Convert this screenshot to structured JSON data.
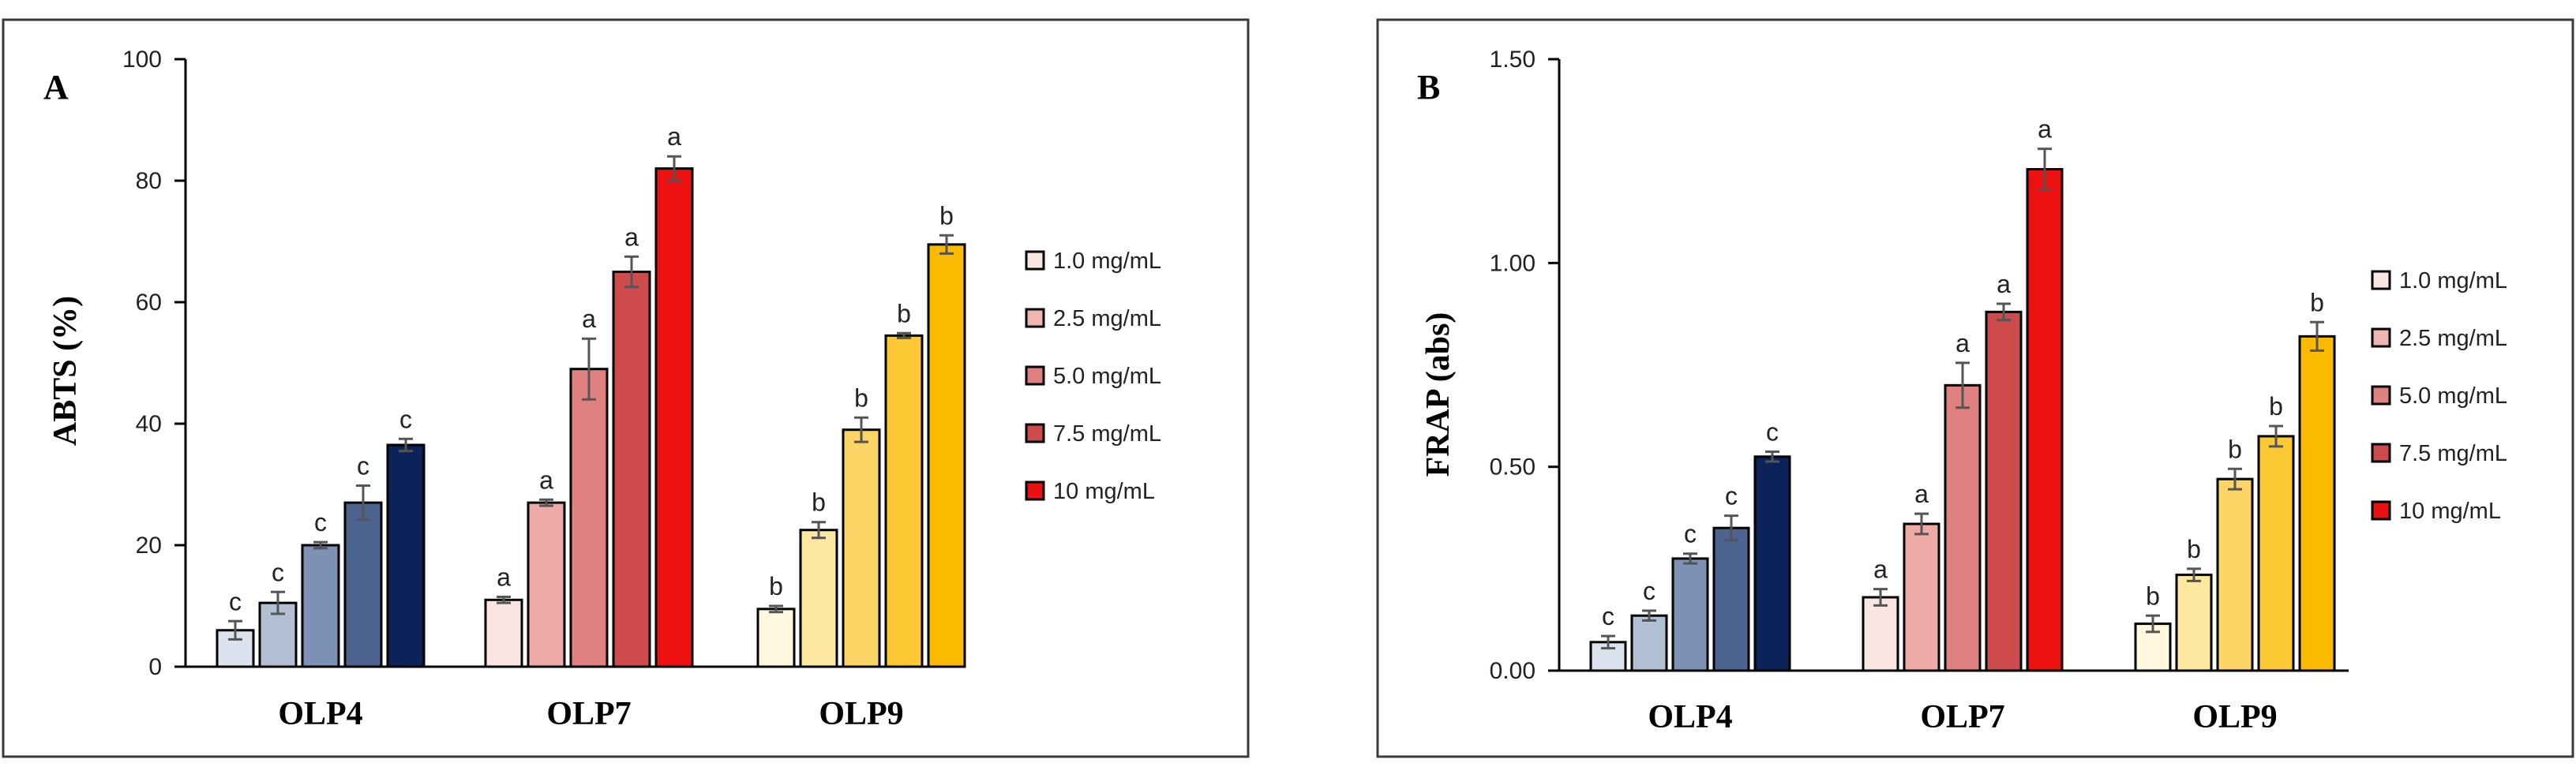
{
  "chart_data": [
    {
      "type": "bar",
      "panel_label": "A",
      "title": "",
      "xlabel": "",
      "ylabel": "ABTS (%)",
      "ylim": [
        0,
        100
      ],
      "yticks": [
        "0",
        "20",
        "40",
        "60",
        "80",
        "100"
      ],
      "categories": [
        "OLP4",
        "OLP7",
        "OLP9"
      ],
      "series": [
        {
          "name": "1.0 mg/mL",
          "values": [
            6,
            11,
            9.5
          ],
          "errors": [
            1.5,
            0.5,
            0.5
          ],
          "labels": [
            "c",
            "a",
            "b"
          ]
        },
        {
          "name": "2.5 mg/mL",
          "values": [
            10.5,
            27,
            22.5
          ],
          "errors": [
            1.8,
            0.5,
            1.3
          ],
          "labels": [
            "c",
            "a",
            "b"
          ]
        },
        {
          "name": "5.0 mg/mL",
          "values": [
            20,
            49,
            39
          ],
          "errors": [
            0.5,
            5,
            2
          ],
          "labels": [
            "c",
            "a",
            "b"
          ]
        },
        {
          "name": "7.5 mg/mL",
          "values": [
            27,
            65,
            54.5
          ],
          "errors": [
            2.8,
            2.5,
            0.4
          ],
          "labels": [
            "c",
            "a",
            "b"
          ]
        },
        {
          "name": "10 mg/mL",
          "values": [
            36.5,
            82,
            69.5
          ],
          "errors": [
            1,
            2,
            1.5
          ],
          "labels": [
            "c",
            "a",
            "b"
          ]
        }
      ],
      "legend": [
        "1.0 mg/mL",
        "2.5 mg/mL",
        "5.0 mg/mL",
        "7.5 mg/mL",
        "10 mg/mL"
      ],
      "legend_position": "right",
      "grid": false
    },
    {
      "type": "bar",
      "panel_label": "B",
      "title": "",
      "xlabel": "",
      "ylabel": "FRAP (abs)",
      "ylim": [
        0,
        1.5
      ],
      "yticks": [
        "0.00",
        "0.50",
        "1.00",
        "1.50"
      ],
      "categories": [
        "OLP4",
        "OLP7",
        "OLP9"
      ],
      "series": [
        {
          "name": "1.0 mg/mL",
          "values": [
            0.07,
            0.18,
            0.115
          ],
          "errors": [
            0.015,
            0.02,
            0.02
          ],
          "labels": [
            "c",
            "a",
            "b"
          ]
        },
        {
          "name": "2.5 mg/mL",
          "values": [
            0.135,
            0.36,
            0.235
          ],
          "errors": [
            0.012,
            0.025,
            0.015
          ],
          "labels": [
            "c",
            "a",
            "b"
          ]
        },
        {
          "name": "5.0 mg/mL",
          "values": [
            0.275,
            0.7,
            0.47
          ],
          "errors": [
            0.012,
            0.055,
            0.025
          ],
          "labels": [
            "c",
            "a",
            "b"
          ]
        },
        {
          "name": "7.5 mg/mL",
          "values": [
            0.35,
            0.88,
            0.575
          ],
          "errors": [
            0.03,
            0.02,
            0.025
          ],
          "labels": [
            "c",
            "a",
            "b"
          ]
        },
        {
          "name": "10 mg/mL",
          "values": [
            0.525,
            1.23,
            0.82
          ],
          "errors": [
            0.012,
            0.05,
            0.035
          ],
          "labels": [
            "c",
            "a",
            "b"
          ]
        }
      ],
      "legend": [
        "1.0 mg/mL",
        "2.5 mg/mL",
        "5.0 mg/mL",
        "7.5 mg/mL",
        "10 mg/mL"
      ],
      "legend_position": "right",
      "grid": false
    }
  ],
  "colors": {
    "OLP4": [
      "#dde3ee",
      "#b3bfd2",
      "#7d91b4",
      "#4d6491",
      "#0b2358"
    ],
    "OLP7": [
      "#fbe5e3",
      "#eeaaa6",
      "#df8181",
      "#cd4b4d",
      "#ee1111"
    ],
    "OLP9": [
      "#fff8de",
      "#ffe8a0",
      "#fdd466",
      "#fcc935",
      "#fcba00"
    ],
    "legend_swatches": [
      "#fbe5e3",
      "#f1b5b1",
      "#df8181",
      "#cd4b4d",
      "#e81010"
    ]
  }
}
